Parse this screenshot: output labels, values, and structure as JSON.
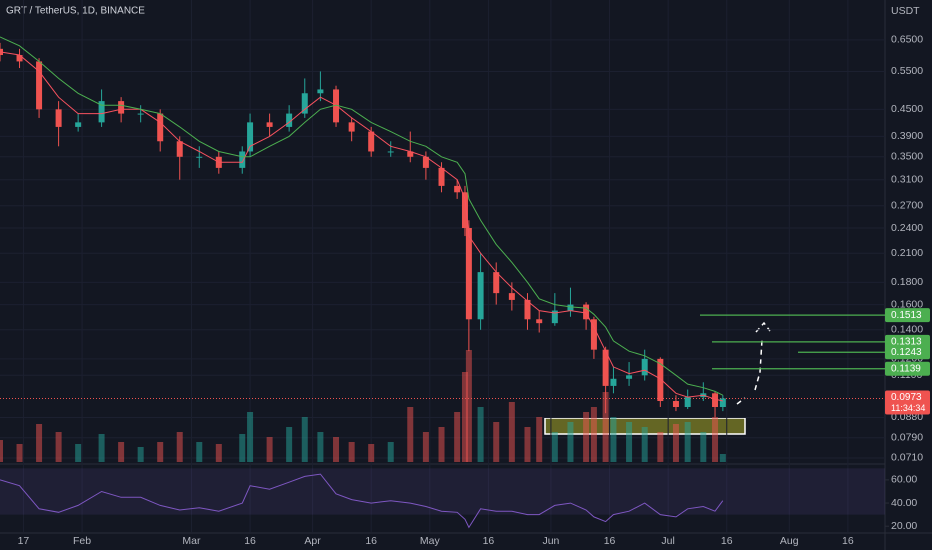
{
  "chart_data": {
    "type": "candlestick",
    "title": "GRT / TetherUS, 1D, BINANCE",
    "y_unit": "USDT",
    "log_scale": true,
    "grid": true,
    "up_color": "#26a69a",
    "down_color": "#ef5350",
    "xlim": [
      10,
      236.5
    ],
    "ylim": [
      0.0695,
      0.803
    ],
    "xticks": [
      {
        "value": 16,
        "label": "17"
      },
      {
        "value": 31,
        "label": "Feb"
      },
      {
        "value": 59,
        "label": "Mar"
      },
      {
        "value": 74,
        "label": "16"
      },
      {
        "value": 90,
        "label": "Apr"
      },
      {
        "value": 105,
        "label": "16"
      },
      {
        "value": 120,
        "label": "May"
      },
      {
        "value": 135,
        "label": "16"
      },
      {
        "value": 151,
        "label": "Jun"
      },
      {
        "value": 166,
        "label": "16"
      },
      {
        "value": 181,
        "label": "Jul"
      },
      {
        "value": 196,
        "label": "16"
      },
      {
        "value": 212,
        "label": "Aug"
      },
      {
        "value": 227,
        "label": "16"
      }
    ],
    "yticks": [
      {
        "value": 0.65,
        "label": "0.6500"
      },
      {
        "value": 0.55,
        "label": "0.5500"
      },
      {
        "value": 0.45,
        "label": "0.4500"
      },
      {
        "value": 0.39,
        "label": "0.3900"
      },
      {
        "value": 0.35,
        "label": "0.3500"
      },
      {
        "value": 0.31,
        "label": "0.3100"
      },
      {
        "value": 0.27,
        "label": "0.2700"
      },
      {
        "value": 0.24,
        "label": "0.2400"
      },
      {
        "value": 0.21,
        "label": "0.2100"
      },
      {
        "value": 0.18,
        "label": "0.1800"
      },
      {
        "value": 0.16,
        "label": "0.1600"
      },
      {
        "value": 0.14,
        "label": "0.1400"
      },
      {
        "value": 0.12,
        "label": "0.1200"
      },
      {
        "value": 0.11,
        "label": "0.1100"
      },
      {
        "value": 0.088,
        "label": "0.0880"
      },
      {
        "value": 0.079,
        "label": "0.0790"
      },
      {
        "value": 0.071,
        "label": "0.0710"
      }
    ],
    "x": [
      10,
      15,
      20,
      25,
      30,
      36,
      41,
      46,
      51,
      56,
      61,
      66,
      72,
      74,
      79,
      84,
      88,
      92,
      96,
      100,
      105,
      110,
      115,
      119,
      123,
      127,
      129,
      130,
      133,
      137,
      141,
      145,
      148,
      152,
      156,
      160,
      162,
      165,
      167,
      171,
      175,
      179,
      183,
      186,
      190,
      193,
      195
    ],
    "open": [
      0.62,
      0.6,
      0.58,
      0.45,
      0.41,
      0.42,
      0.47,
      0.44,
      0.44,
      0.38,
      0.35,
      0.35,
      0.33,
      0.36,
      0.42,
      0.41,
      0.44,
      0.49,
      0.5,
      0.42,
      0.4,
      0.36,
      0.36,
      0.35,
      0.33,
      0.3,
      0.29,
      0.24,
      0.148,
      0.19,
      0.17,
      0.164,
      0.148,
      0.145,
      0.155,
      0.16,
      0.148,
      0.126,
      0.104,
      0.108,
      0.11,
      0.12,
      0.096,
      0.093,
      0.098,
      0.1,
      0.093
    ],
    "high": [
      0.64,
      0.62,
      0.59,
      0.47,
      0.44,
      0.5,
      0.48,
      0.46,
      0.45,
      0.39,
      0.37,
      0.36,
      0.37,
      0.44,
      0.44,
      0.46,
      0.53,
      0.55,
      0.51,
      0.43,
      0.41,
      0.38,
      0.4,
      0.36,
      0.34,
      0.31,
      0.3,
      0.25,
      0.21,
      0.2,
      0.18,
      0.17,
      0.155,
      0.17,
      0.175,
      0.162,
      0.15,
      0.128,
      0.115,
      0.118,
      0.126,
      0.121,
      0.099,
      0.102,
      0.106,
      0.101,
      0.099
    ],
    "low": [
      0.58,
      0.56,
      0.43,
      0.37,
      0.4,
      0.41,
      0.42,
      0.42,
      0.36,
      0.31,
      0.33,
      0.32,
      0.32,
      0.35,
      0.39,
      0.4,
      0.43,
      0.47,
      0.41,
      0.38,
      0.35,
      0.35,
      0.34,
      0.31,
      0.29,
      0.28,
      0.23,
      0.125,
      0.14,
      0.16,
      0.155,
      0.14,
      0.138,
      0.143,
      0.15,
      0.14,
      0.12,
      0.09,
      0.1,
      0.104,
      0.107,
      0.093,
      0.091,
      0.092,
      0.096,
      0.088,
      0.091
    ],
    "close": [
      0.6,
      0.58,
      0.45,
      0.41,
      0.42,
      0.47,
      0.44,
      0.44,
      0.38,
      0.35,
      0.35,
      0.33,
      0.36,
      0.42,
      0.41,
      0.44,
      0.49,
      0.5,
      0.42,
      0.4,
      0.36,
      0.36,
      0.35,
      0.33,
      0.3,
      0.29,
      0.24,
      0.148,
      0.19,
      0.17,
      0.164,
      0.148,
      0.145,
      0.155,
      0.16,
      0.148,
      0.126,
      0.104,
      0.108,
      0.11,
      0.12,
      0.096,
      0.093,
      0.098,
      0.1,
      0.093,
      0.0973
    ],
    "volume": [
      22,
      18,
      38,
      30,
      18,
      28,
      20,
      15,
      20,
      30,
      20,
      18,
      28,
      50,
      25,
      35,
      45,
      30,
      25,
      20,
      18,
      20,
      55,
      30,
      35,
      50,
      90,
      112,
      55,
      40,
      60,
      35,
      45,
      30,
      40,
      50,
      55,
      70,
      45,
      40,
      35,
      30,
      38,
      40,
      30,
      45,
      8
    ],
    "moving_averages": [
      {
        "color": "#f7525f",
        "values": [
          0.61,
          0.6,
          0.55,
          0.48,
          0.44,
          0.44,
          0.45,
          0.45,
          0.42,
          0.38,
          0.36,
          0.34,
          0.34,
          0.37,
          0.39,
          0.42,
          0.45,
          0.48,
          0.46,
          0.43,
          0.4,
          0.37,
          0.36,
          0.35,
          0.33,
          0.31,
          0.28,
          0.23,
          0.21,
          0.19,
          0.175,
          0.163,
          0.155,
          0.153,
          0.155,
          0.153,
          0.142,
          0.125,
          0.115,
          0.111,
          0.113,
          0.108,
          0.1,
          0.098,
          0.099,
          0.097,
          0.096
        ]
      },
      {
        "color": "#4caf50",
        "values": [
          0.66,
          0.63,
          0.58,
          0.53,
          0.49,
          0.46,
          0.46,
          0.45,
          0.44,
          0.41,
          0.38,
          0.36,
          0.35,
          0.35,
          0.37,
          0.39,
          0.42,
          0.45,
          0.46,
          0.45,
          0.42,
          0.4,
          0.38,
          0.37,
          0.35,
          0.34,
          0.32,
          0.28,
          0.25,
          0.22,
          0.2,
          0.18,
          0.165,
          0.16,
          0.158,
          0.157,
          0.152,
          0.142,
          0.132,
          0.125,
          0.122,
          0.117,
          0.11,
          0.105,
          0.103,
          0.101,
          0.099
        ]
      }
    ],
    "levels": {
      "color": "#4caf50",
      "values": [
        0.1513,
        0.1313,
        0.1243,
        0.1139
      ]
    },
    "last_price": 0.0973,
    "countdown": "11:34:34",
    "rsi": {
      "color": "#7e57c2",
      "ylim": [
        15,
        72
      ],
      "band": [
        30,
        70
      ],
      "yticks": [
        {
          "value": 60,
          "label": "60.00"
        },
        {
          "value": 40,
          "label": "40.00"
        },
        {
          "value": 20,
          "label": "20.00"
        }
      ],
      "values": [
        60,
        55,
        35,
        32,
        38,
        50,
        45,
        45,
        38,
        34,
        36,
        33,
        40,
        55,
        52,
        58,
        63,
        65,
        48,
        43,
        40,
        42,
        40,
        37,
        33,
        32,
        26,
        19,
        35,
        33,
        33,
        30,
        30,
        38,
        40,
        34,
        28,
        24,
        30,
        33,
        40,
        30,
        28,
        35,
        37,
        33,
        42
      ]
    }
  }
}
